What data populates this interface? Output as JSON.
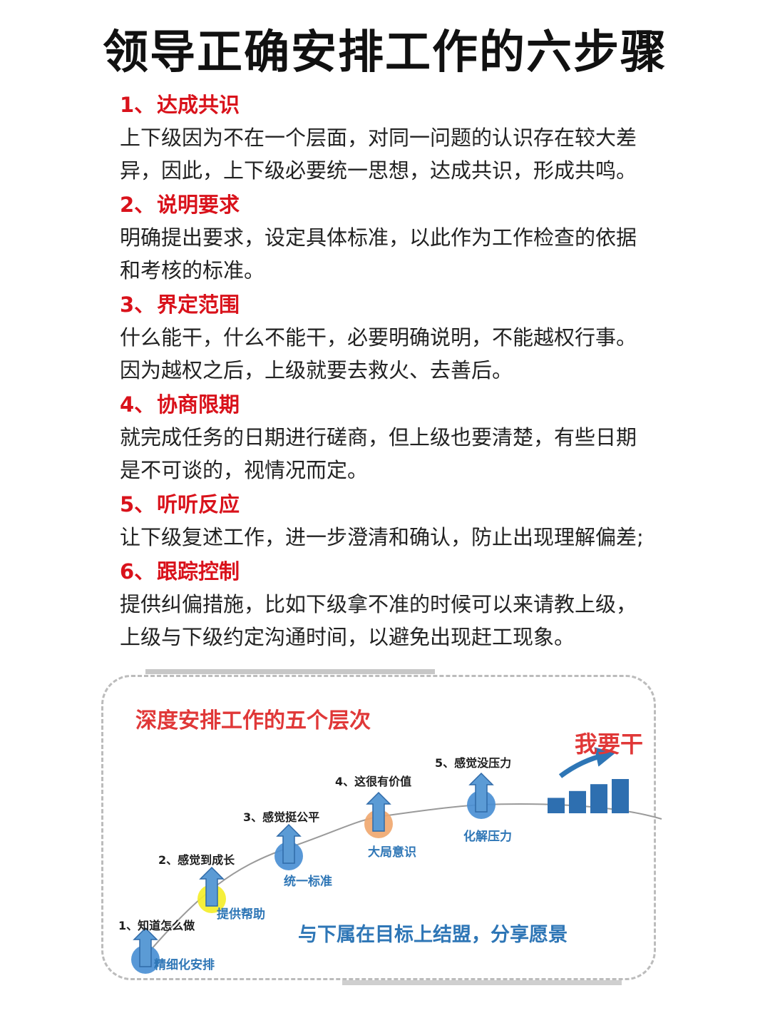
{
  "title": "领导正确安排工作的六步骤",
  "steps": [
    {
      "num": "1、",
      "heading": "达成共识",
      "lines": [
        "上下级因为不在一个层面，对同一问题的认识存在较大差",
        "异，因此，上下级必要统一思想，达成共识，形成共鸣。"
      ]
    },
    {
      "num": "2、",
      "heading": "说明要求",
      "lines": [
        "明确提出要求，设定具体标准，以此作为工作检查的依据",
        "和考核的标准。"
      ]
    },
    {
      "num": "3、",
      "heading": "界定范围",
      "lines": [
        "什么能干，什么不能干，必要明确说明，不能越权行事。",
        "因为越权之后，上级就要去救火、去善后。"
      ]
    },
    {
      "num": "4、",
      "heading": "协商限期",
      "lines": [
        "就完成任务的日期进行磋商，但上级也要清楚，有些日期",
        "是不可谈的，视情况而定。"
      ]
    },
    {
      "num": "5、",
      "heading": "听听反应",
      "lines": [
        "让下级复述工作，进一步澄清和确认，防止出现理解偏差;"
      ]
    },
    {
      "num": "6、",
      "heading": "跟踪控制",
      "lines": [
        "提供纠偏措施，比如下级拿不准的时候可以来请教上级，",
        "上级与下级约定沟通时间，以避免出现赶工现象。"
      ]
    }
  ],
  "diagram": {
    "title": "深度安排工作的五个层次",
    "slogan": "我要干",
    "caption": "与下属在目标上结盟，分享愿景",
    "levels": [
      {
        "title": "1、知道怎么做",
        "sub": "精细化安排",
        "color": "#4a8fd4"
      },
      {
        "title": "2、感觉到成长",
        "sub": "提供帮助",
        "color": "#f4ee2a"
      },
      {
        "title": "3、感觉挺公平",
        "sub": "统一标准",
        "color": "#4a8fd4"
      },
      {
        "title": "4、这很有价值",
        "sub": "大局意识",
        "color": "#f0a870"
      },
      {
        "title": "5、感觉没压力",
        "sub": "化解压力",
        "color": "#4a8fd4"
      }
    ],
    "bar_color": "#2e6fb0",
    "bar_levels": [
      0.45,
      0.65,
      0.85,
      1.0
    ]
  }
}
